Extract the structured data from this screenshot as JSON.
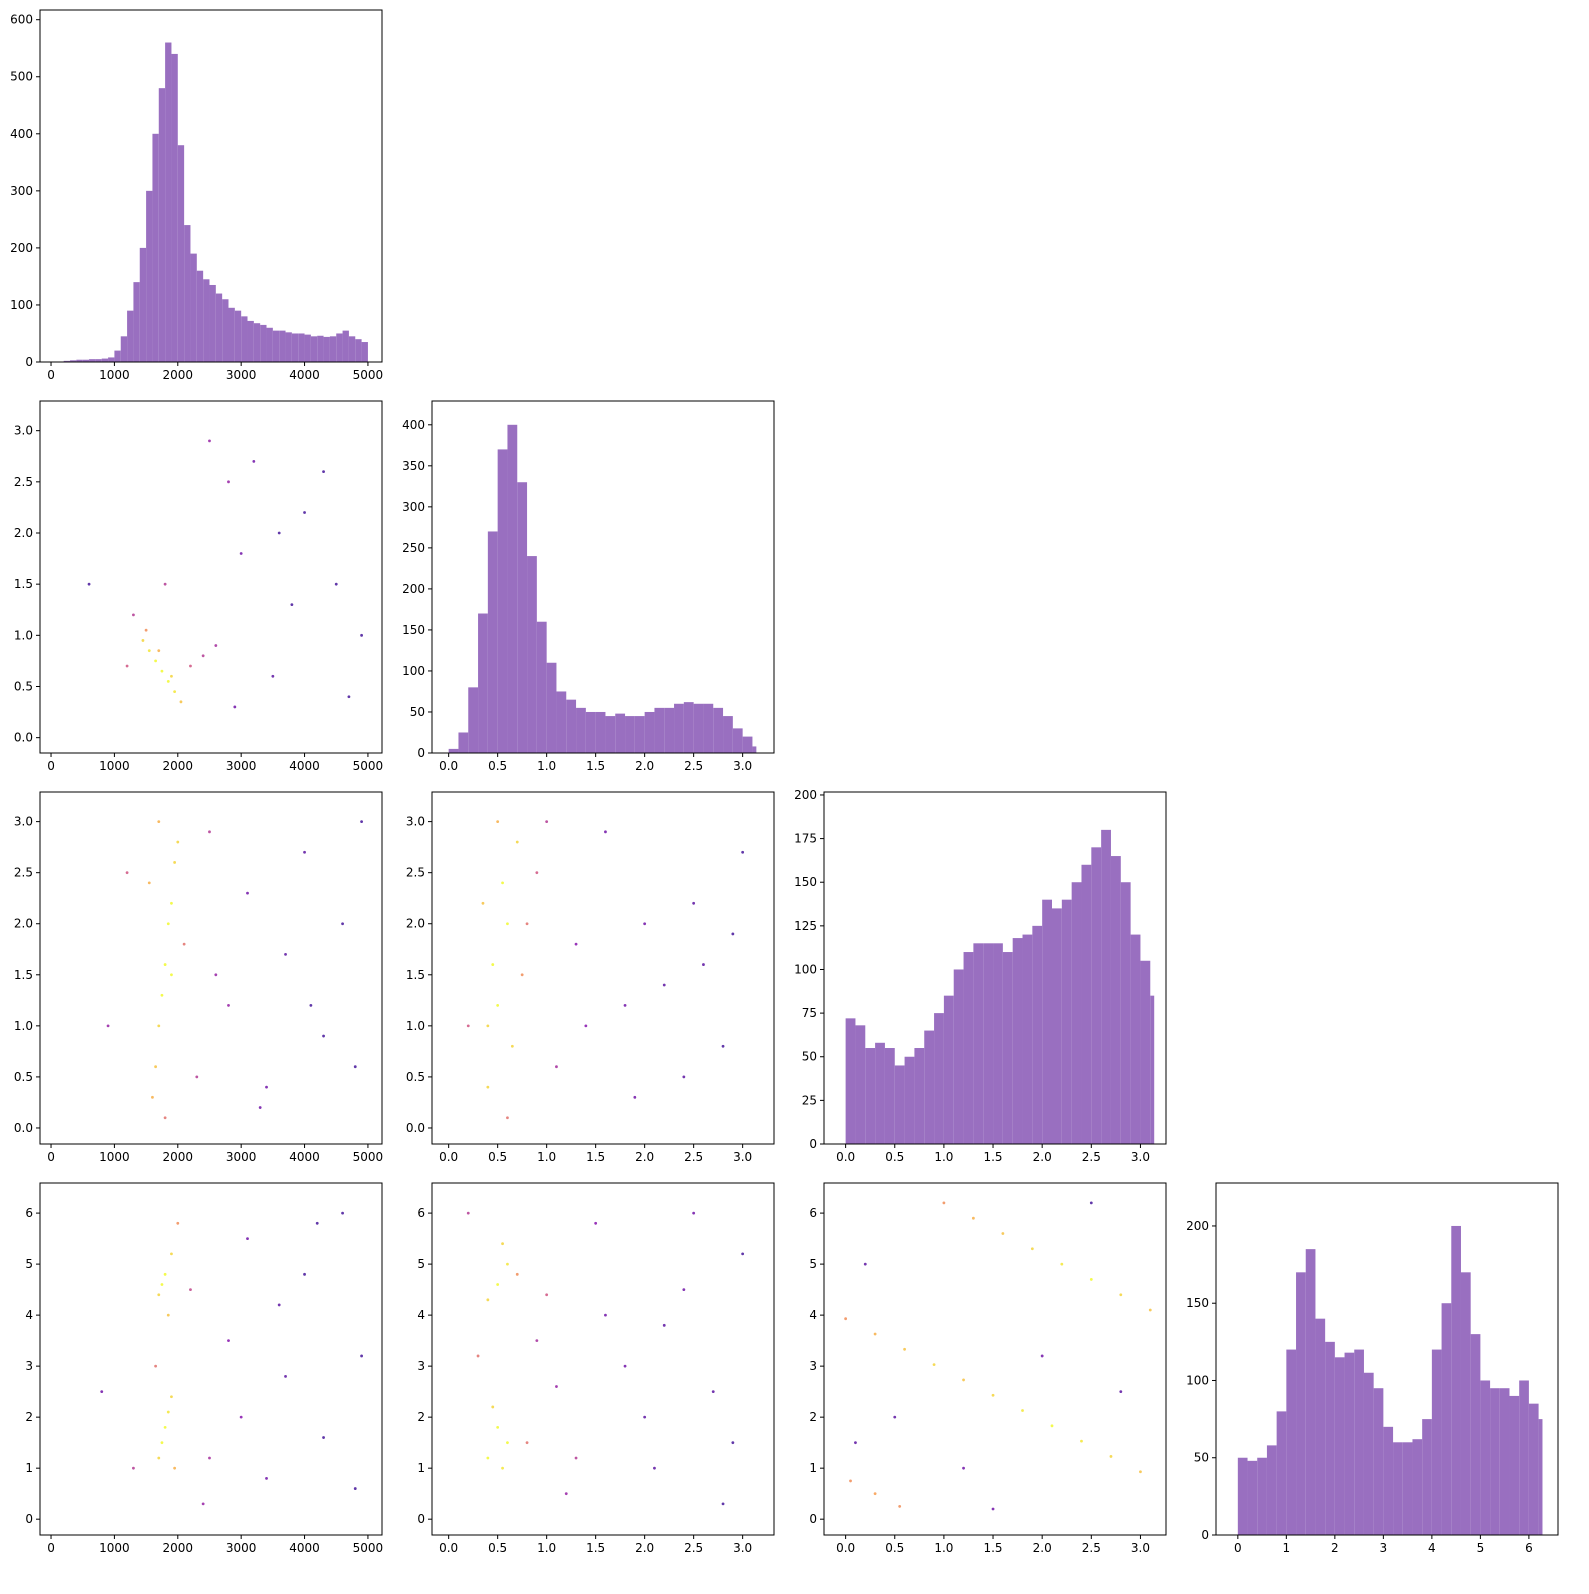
{
  "chart_data": [
    {
      "type": "histogram",
      "color": "#9467bd",
      "bins": [
        0,
        100,
        200,
        300,
        400,
        500,
        600,
        700,
        800,
        900,
        1000,
        1100,
        1200,
        1300,
        1400,
        1500,
        1600,
        1700,
        1800,
        1900,
        2000,
        2100,
        2200,
        2300,
        2400,
        2500,
        2600,
        2700,
        2800,
        2900,
        3000,
        3100,
        3200,
        3300,
        3400,
        3500,
        3600,
        3700,
        3800,
        3900,
        4000,
        4100,
        4200,
        4300,
        4400,
        4500,
        4600,
        4700,
        4800,
        4900,
        5000
      ],
      "values": [
        0,
        0,
        2,
        3,
        4,
        4,
        5,
        5,
        6,
        8,
        20,
        45,
        90,
        140,
        200,
        300,
        400,
        480,
        560,
        540,
        380,
        240,
        190,
        160,
        145,
        135,
        120,
        110,
        95,
        90,
        80,
        72,
        68,
        65,
        60,
        55,
        55,
        52,
        50,
        50,
        48,
        45,
        46,
        44,
        45,
        50,
        55,
        45,
        40,
        35
      ],
      "xlim": [
        -174,
        5222
      ],
      "xticks": [
        0,
        1000,
        2000,
        3000,
        4000,
        5000
      ],
      "ylim": [
        0,
        617
      ],
      "yticks": [
        0,
        100,
        200,
        300,
        400,
        500,
        600
      ]
    },
    {
      "type": "scatter",
      "cmap": "plasma",
      "x": [
        1450,
        1550,
        1650,
        1750,
        1850,
        1950,
        2050,
        1500,
        1700,
        1900,
        2200,
        2400,
        2600,
        1300,
        2800,
        3000,
        3500,
        4000,
        4500,
        4900,
        2500,
        3200,
        3800,
        4300,
        4700,
        1800,
        2900,
        3600,
        1200,
        600
      ],
      "y": [
        0.95,
        0.85,
        0.75,
        0.65,
        0.55,
        0.45,
        0.35,
        1.05,
        0.85,
        0.6,
        0.7,
        0.8,
        0.9,
        1.2,
        2.5,
        1.8,
        0.6,
        2.2,
        1.5,
        1.0,
        2.9,
        2.7,
        1.3,
        2.6,
        0.4,
        1.5,
        0.3,
        2.0,
        0.7,
        1.5
      ],
      "c": [
        0.9,
        0.95,
        1,
        1,
        1,
        0.95,
        0.85,
        0.7,
        0.8,
        0.9,
        0.5,
        0.4,
        0.35,
        0.4,
        0.3,
        0.2,
        0.15,
        0.1,
        0.1,
        0.1,
        0.3,
        0.2,
        0.1,
        0.1,
        0.1,
        0.4,
        0.2,
        0.1,
        0.5,
        0.1
      ],
      "xlim": [
        -174,
        5222
      ],
      "xticks": [
        0,
        1000,
        2000,
        3000,
        4000,
        5000
      ],
      "ylim": [
        -0.15,
        3.29
      ],
      "yticks": [
        {
          "value": 0,
          "label": "0.0"
        },
        {
          "value": 0.5,
          "label": "0.5"
        },
        {
          "value": 1,
          "label": "1.0"
        },
        {
          "value": 1.5,
          "label": "1.5"
        },
        {
          "value": 2,
          "label": "2.0"
        },
        {
          "value": 2.5,
          "label": "2.5"
        },
        {
          "value": 3,
          "label": "3.0"
        }
      ]
    },
    {
      "type": "histogram",
      "color": "#9467bd",
      "bins": [
        0,
        0.1,
        0.2,
        0.3,
        0.4,
        0.5,
        0.6,
        0.7,
        0.8,
        0.9,
        1.0,
        1.1,
        1.2,
        1.3,
        1.4,
        1.5,
        1.6,
        1.7,
        1.8,
        1.9,
        2.0,
        2.1,
        2.2,
        2.3,
        2.4,
        2.5,
        2.6,
        2.7,
        2.8,
        2.9,
        3.0,
        3.1,
        3.14
      ],
      "values": [
        5,
        25,
        80,
        170,
        270,
        370,
        400,
        330,
        240,
        160,
        110,
        75,
        65,
        55,
        50,
        50,
        45,
        48,
        45,
        45,
        50,
        55,
        55,
        60,
        62,
        60,
        60,
        55,
        45,
        30,
        20,
        8
      ],
      "xlim": [
        -0.17,
        3.32
      ],
      "xticks": [
        {
          "value": 0,
          "label": "0.0"
        },
        {
          "value": 0.5,
          "label": "0.5"
        },
        {
          "value": 1,
          "label": "1.0"
        },
        {
          "value": 1.5,
          "label": "1.5"
        },
        {
          "value": 2,
          "label": "2.0"
        },
        {
          "value": 2.5,
          "label": "2.5"
        },
        {
          "value": 3,
          "label": "3.0"
        }
      ],
      "ylim": [
        0,
        429
      ],
      "yticks": [
        0,
        50,
        100,
        150,
        200,
        250,
        300,
        350,
        400
      ]
    },
    {
      "type": "scatter",
      "cmap": "plasma",
      "x": [
        1600,
        1700,
        1800,
        1900,
        2000,
        1650,
        1750,
        1850,
        1950,
        1700,
        1800,
        1900,
        1550,
        2100,
        2300,
        2500,
        2800,
        3100,
        3400,
        3700,
        4000,
        4300,
        4600,
        4900,
        2600,
        3300,
        4100,
        4800,
        1200,
        900
      ],
      "y": [
        0.3,
        1.0,
        1.6,
        2.2,
        2.8,
        0.6,
        1.3,
        2.0,
        2.6,
        3.0,
        0.1,
        1.5,
        2.4,
        1.8,
        0.5,
        2.9,
        1.2,
        2.3,
        0.4,
        1.7,
        2.7,
        0.9,
        2.0,
        3.0,
        1.5,
        0.2,
        1.2,
        0.6,
        2.5,
        1.0
      ],
      "c": [
        0.8,
        0.9,
        1,
        1,
        0.9,
        0.85,
        1,
        1,
        0.9,
        0.8,
        0.6,
        1,
        0.8,
        0.6,
        0.4,
        0.4,
        0.3,
        0.2,
        0.2,
        0.15,
        0.15,
        0.1,
        0.1,
        0.1,
        0.3,
        0.2,
        0.1,
        0.1,
        0.5,
        0.3
      ],
      "xlim": [
        -174,
        5222
      ],
      "xticks": [
        0,
        1000,
        2000,
        3000,
        4000,
        5000
      ],
      "ylim": [
        -0.157,
        3.29
      ],
      "yticks": [
        {
          "value": 0,
          "label": "0.0"
        },
        {
          "value": 0.5,
          "label": "0.5"
        },
        {
          "value": 1,
          "label": "1.0"
        },
        {
          "value": 1.5,
          "label": "1.5"
        },
        {
          "value": 2,
          "label": "2.0"
        },
        {
          "value": 2.5,
          "label": "2.5"
        },
        {
          "value": 3,
          "label": "3.0"
        }
      ]
    },
    {
      "type": "scatter",
      "cmap": "plasma",
      "x": [
        0.4,
        0.5,
        0.6,
        0.7,
        0.45,
        0.55,
        0.65,
        0.35,
        0.75,
        0.5,
        0.6,
        0.4,
        0.9,
        1.1,
        1.3,
        1.6,
        1.9,
        2.2,
        2.5,
        2.8,
        3.0,
        1.4,
        2.0,
        2.6,
        1.0,
        1.8,
        2.4,
        2.9,
        0.2,
        0.8
      ],
      "y": [
        0.4,
        1.2,
        2.0,
        2.8,
        1.6,
        2.4,
        0.8,
        2.2,
        1.5,
        3.0,
        0.1,
        1.0,
        2.5,
        0.6,
        1.8,
        2.9,
        0.3,
        1.4,
        2.2,
        0.8,
        2.7,
        1.0,
        2.0,
        1.6,
        3.0,
        1.2,
        0.5,
        1.9,
        1.0,
        2.0
      ],
      "c": [
        0.9,
        1,
        1,
        0.9,
        1,
        1,
        0.9,
        0.85,
        0.7,
        0.8,
        0.6,
        0.9,
        0.5,
        0.35,
        0.25,
        0.2,
        0.2,
        0.15,
        0.15,
        0.1,
        0.1,
        0.25,
        0.2,
        0.15,
        0.4,
        0.2,
        0.15,
        0.1,
        0.5,
        0.6
      ],
      "xlim": [
        -0.17,
        3.32
      ],
      "xticks": [
        {
          "value": 0,
          "label": "0.0"
        },
        {
          "value": 0.5,
          "label": "0.5"
        },
        {
          "value": 1,
          "label": "1.0"
        },
        {
          "value": 1.5,
          "label": "1.5"
        },
        {
          "value": 2,
          "label": "2.0"
        },
        {
          "value": 2.5,
          "label": "2.5"
        },
        {
          "value": 3,
          "label": "3.0"
        }
      ],
      "ylim": [
        -0.157,
        3.29
      ],
      "yticks": [
        {
          "value": 0,
          "label": "0.0"
        },
        {
          "value": 0.5,
          "label": "0.5"
        },
        {
          "value": 1,
          "label": "1.0"
        },
        {
          "value": 1.5,
          "label": "1.5"
        },
        {
          "value": 2,
          "label": "2.0"
        },
        {
          "value": 2.5,
          "label": "2.5"
        },
        {
          "value": 3,
          "label": "3.0"
        }
      ]
    },
    {
      "type": "histogram",
      "color": "#9467bd",
      "bins": [
        0,
        0.1,
        0.2,
        0.3,
        0.4,
        0.5,
        0.6,
        0.7,
        0.8,
        0.9,
        1.0,
        1.1,
        1.2,
        1.3,
        1.4,
        1.5,
        1.6,
        1.7,
        1.8,
        1.9,
        2.0,
        2.1,
        2.2,
        2.3,
        2.4,
        2.5,
        2.6,
        2.7,
        2.8,
        2.9,
        3.0,
        3.1,
        3.14
      ],
      "values": [
        72,
        68,
        55,
        58,
        55,
        45,
        50,
        55,
        65,
        75,
        85,
        100,
        110,
        115,
        115,
        115,
        110,
        118,
        120,
        125,
        140,
        135,
        140,
        150,
        160,
        170,
        180,
        165,
        150,
        120,
        105,
        85
      ],
      "xlim": [
        -0.22,
        3.26
      ],
      "xticks": [
        {
          "value": 0,
          "label": "0.0"
        },
        {
          "value": 0.5,
          "label": "0.5"
        },
        {
          "value": 1,
          "label": "1.0"
        },
        {
          "value": 1.5,
          "label": "1.5"
        },
        {
          "value": 2,
          "label": "2.0"
        },
        {
          "value": 2.5,
          "label": "2.5"
        },
        {
          "value": 3,
          "label": "3.0"
        }
      ],
      "ylim": [
        0,
        201.7
      ],
      "yticks": [
        0,
        25,
        50,
        75,
        100,
        125,
        150,
        175,
        200
      ]
    },
    {
      "type": "scatter",
      "cmap": "plasma",
      "x": [
        1700,
        1800,
        1900,
        1750,
        1850,
        1950,
        1700,
        1800,
        1900,
        1750,
        1850,
        1650,
        2000,
        2200,
        2500,
        2800,
        3100,
        3400,
        3700,
        4000,
        4300,
        4600,
        4900,
        2400,
        3000,
        3600,
        4200,
        4800,
        1300,
        800
      ],
      "y": [
        1.2,
        1.8,
        2.4,
        1.5,
        2.1,
        1.0,
        4.4,
        4.8,
        5.2,
        4.6,
        4.0,
        3.0,
        5.8,
        4.5,
        1.2,
        3.5,
        5.5,
        0.8,
        2.8,
        4.8,
        1.6,
        6.0,
        3.2,
        0.3,
        2.0,
        4.2,
        5.8,
        0.6,
        1.0,
        2.5
      ],
      "c": [
        0.9,
        1,
        0.9,
        1,
        0.95,
        0.8,
        0.9,
        1,
        0.9,
        1,
        0.85,
        0.6,
        0.7,
        0.45,
        0.35,
        0.25,
        0.2,
        0.2,
        0.15,
        0.1,
        0.1,
        0.1,
        0.1,
        0.3,
        0.25,
        0.15,
        0.1,
        0.1,
        0.4,
        0.2
      ],
      "xlim": [
        -174,
        5222
      ],
      "xticks": [
        0,
        1000,
        2000,
        3000,
        4000,
        5000
      ],
      "ylim": [
        -0.31,
        6.59
      ],
      "yticks": [
        0,
        1,
        2,
        3,
        4,
        5,
        6
      ]
    },
    {
      "type": "scatter",
      "cmap": "plasma",
      "x": [
        0.4,
        0.5,
        0.6,
        0.45,
        0.55,
        0.5,
        0.6,
        0.4,
        0.55,
        0.7,
        0.8,
        1.0,
        1.3,
        1.5,
        1.8,
        2.1,
        2.4,
        2.7,
        3.0,
        1.2,
        1.6,
        2.0,
        2.5,
        2.9,
        0.3,
        0.9,
        2.2,
        2.8,
        1.1,
        0.2
      ],
      "y": [
        1.2,
        1.8,
        1.5,
        2.2,
        1.0,
        4.6,
        5.0,
        4.3,
        5.4,
        4.8,
        1.5,
        4.4,
        1.2,
        5.8,
        3.0,
        1.0,
        4.5,
        2.5,
        5.2,
        0.5,
        4.0,
        2.0,
        6.0,
        1.5,
        3.2,
        3.5,
        3.8,
        0.3,
        2.6,
        6.0
      ],
      "c": [
        1,
        1,
        1,
        0.9,
        0.95,
        1,
        0.95,
        0.9,
        0.9,
        0.7,
        0.6,
        0.5,
        0.4,
        0.25,
        0.2,
        0.15,
        0.2,
        0.15,
        0.1,
        0.3,
        0.2,
        0.15,
        0.2,
        0.1,
        0.6,
        0.35,
        0.15,
        0.1,
        0.3,
        0.4
      ],
      "xlim": [
        -0.17,
        3.32
      ],
      "xticks": [
        {
          "value": 0,
          "label": "0.0"
        },
        {
          "value": 0.5,
          "label": "0.5"
        },
        {
          "value": 1,
          "label": "1.0"
        },
        {
          "value": 1.5,
          "label": "1.5"
        },
        {
          "value": 2,
          "label": "2.0"
        },
        {
          "value": 2.5,
          "label": "2.5"
        },
        {
          "value": 3,
          "label": "3.0"
        }
      ],
      "ylim": [
        -0.31,
        6.59
      ],
      "yticks": [
        0,
        1,
        2,
        3,
        4,
        5,
        6
      ]
    },
    {
      "type": "scatter",
      "cmap": "plasma",
      "x": [
        0.0,
        0.3,
        0.6,
        0.9,
        1.2,
        1.5,
        1.8,
        2.1,
        2.4,
        2.7,
        3.0,
        1.0,
        1.3,
        1.6,
        1.9,
        2.2,
        2.5,
        2.8,
        3.1,
        0.05,
        0.3,
        0.55,
        0.2,
        0.5,
        1.5,
        2.0,
        2.8,
        1.2,
        0.1,
        2.5
      ],
      "y": [
        3.93,
        3.63,
        3.33,
        3.03,
        2.73,
        2.43,
        2.13,
        1.83,
        1.53,
        1.23,
        0.93,
        6.2,
        5.9,
        5.6,
        5.3,
        5.0,
        4.7,
        4.4,
        4.1,
        0.75,
        0.5,
        0.25,
        5.0,
        2.0,
        0.2,
        3.2,
        2.5,
        1.0,
        1.5,
        6.2
      ],
      "c": [
        0.7,
        0.8,
        0.85,
        0.9,
        0.85,
        0.9,
        0.95,
        1,
        0.95,
        0.9,
        0.85,
        0.7,
        0.8,
        0.85,
        0.9,
        0.95,
        1,
        0.9,
        0.85,
        0.7,
        0.75,
        0.7,
        0.15,
        0.15,
        0.2,
        0.2,
        0.15,
        0.2,
        0.15,
        0.1
      ],
      "xlim": [
        -0.22,
        3.26
      ],
      "xticks": [
        {
          "value": 0,
          "label": "0.0"
        },
        {
          "value": 0.5,
          "label": "0.5"
        },
        {
          "value": 1,
          "label": "1.0"
        },
        {
          "value": 1.5,
          "label": "1.5"
        },
        {
          "value": 2,
          "label": "2.0"
        },
        {
          "value": 2.5,
          "label": "2.5"
        },
        {
          "value": 3,
          "label": "3.0"
        }
      ],
      "ylim": [
        -0.31,
        6.59
      ],
      "yticks": [
        0,
        1,
        2,
        3,
        4,
        5,
        6
      ]
    },
    {
      "type": "histogram",
      "color": "#9467bd",
      "bins": [
        0,
        0.2,
        0.4,
        0.6,
        0.8,
        1.0,
        1.2,
        1.4,
        1.6,
        1.8,
        2.0,
        2.2,
        2.4,
        2.6,
        2.8,
        3.0,
        3.2,
        3.4,
        3.6,
        3.8,
        4.0,
        4.2,
        4.4,
        4.6,
        4.8,
        5.0,
        5.2,
        5.4,
        5.6,
        5.8,
        6.0,
        6.2,
        6.28
      ],
      "values": [
        50,
        48,
        50,
        58,
        80,
        120,
        170,
        185,
        140,
        125,
        115,
        118,
        120,
        105,
        95,
        70,
        60,
        60,
        62,
        75,
        120,
        150,
        200,
        170,
        130,
        100,
        95,
        95,
        90,
        100,
        85,
        75
      ],
      "xlim": [
        -0.45,
        6.6
      ],
      "xticks": [
        0,
        1,
        2,
        3,
        4,
        5,
        6
      ],
      "ylim": [
        0,
        227.8
      ],
      "yticks": [
        0,
        50,
        100,
        150,
        200
      ]
    }
  ]
}
